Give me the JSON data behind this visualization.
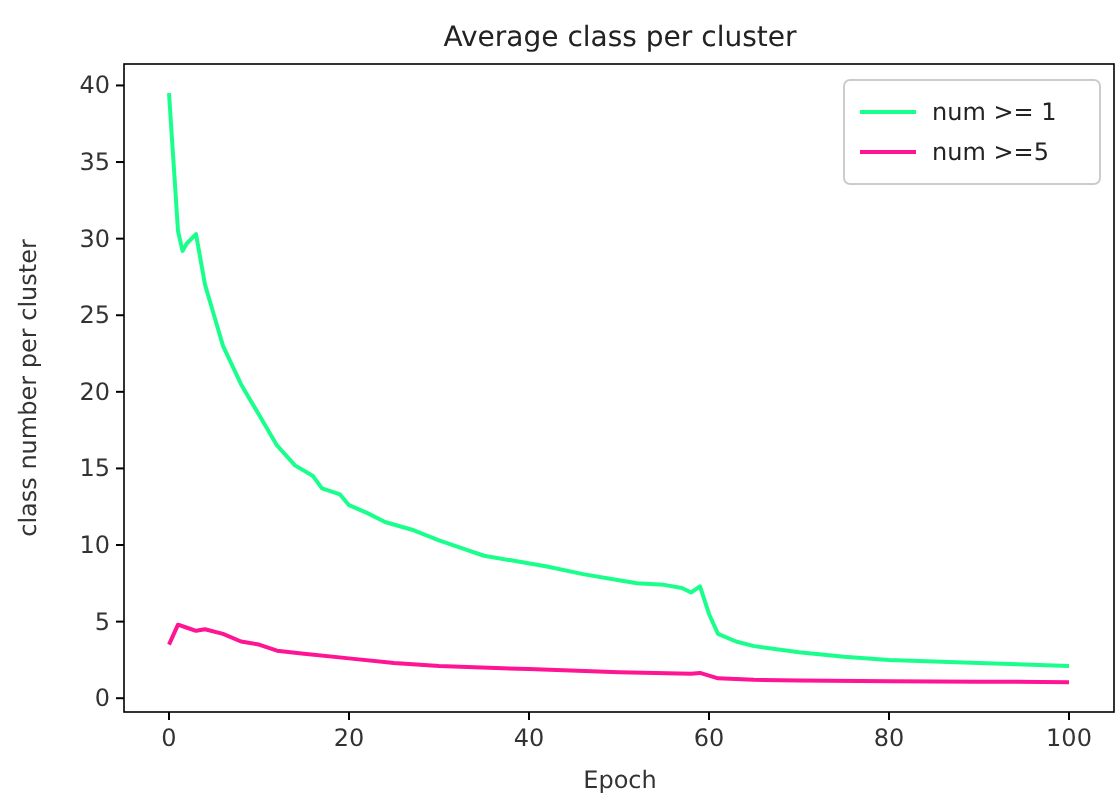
{
  "chart_data": {
    "type": "line",
    "title": "Average class per cluster",
    "xlabel": "Epoch",
    "ylabel": "class number per cluster",
    "xlim": [
      -5,
      105
    ],
    "xticks": [
      0,
      20,
      40,
      60,
      80,
      100
    ],
    "ylim": [
      -0.9,
      41.4
    ],
    "yticks": [
      0,
      5,
      10,
      15,
      20,
      25,
      30,
      35,
      40
    ],
    "legend": "top right",
    "grid": false,
    "marker": "none",
    "line_style": "solid",
    "series": [
      {
        "name": "num >= 1",
        "color": "#1aff8c",
        "x": [
          0,
          1,
          1.5,
          2,
          3,
          4,
          5,
          6,
          8,
          10,
          12,
          14,
          16,
          17,
          19,
          20,
          22,
          24,
          27,
          30,
          33,
          35,
          38,
          42,
          46,
          50,
          52,
          55,
          57,
          58,
          59,
          60,
          61,
          63,
          65,
          70,
          75,
          80,
          85,
          90,
          95,
          100
        ],
        "values": [
          39.5,
          30.5,
          29.2,
          29.7,
          30.3,
          27,
          25,
          23,
          20.5,
          18.5,
          16.5,
          15.2,
          14.5,
          13.7,
          13.3,
          12.6,
          12.1,
          11.5,
          11,
          10.3,
          9.7,
          9.3,
          9,
          8.6,
          8.1,
          7.7,
          7.5,
          7.4,
          7.2,
          6.9,
          7.3,
          5.5,
          4.2,
          3.7,
          3.4,
          3.0,
          2.7,
          2.5,
          2.4,
          2.3,
          2.2,
          2.1
        ]
      },
      {
        "name": "num >=5",
        "color": "#ff1493",
        "x": [
          0,
          1,
          2,
          3,
          4,
          6,
          8,
          10,
          12,
          15,
          20,
          25,
          30,
          40,
          50,
          58,
          59,
          61,
          65,
          70,
          80,
          90,
          100
        ],
        "values": [
          3.5,
          4.8,
          4.6,
          4.4,
          4.5,
          4.2,
          3.7,
          3.5,
          3.1,
          2.9,
          2.6,
          2.3,
          2.1,
          1.9,
          1.7,
          1.6,
          1.65,
          1.3,
          1.2,
          1.15,
          1.1,
          1.08,
          1.05
        ]
      }
    ]
  }
}
